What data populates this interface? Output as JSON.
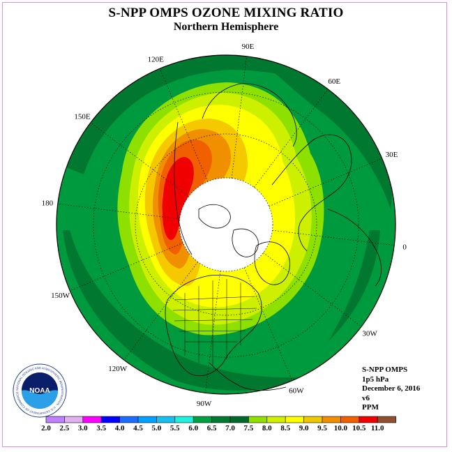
{
  "title": "S-NPP OMPS OZONE MIXING RATIO",
  "subtitle": "Northern Hemisphere",
  "info": {
    "instrument": "S-NPP OMPS",
    "level": "1p5 hPa",
    "date": "December 6, 2016",
    "version": "v6",
    "units": "PPM"
  },
  "logo": {
    "text": "NOAA",
    "ring_text": "NATIONAL OCEANIC AND ATMOSPHERIC ADMINISTRATION · U.S. DEPARTMENT OF COMMERCE"
  },
  "longitude_labels": [
    {
      "lon": 90,
      "text": "90E"
    },
    {
      "lon": 60,
      "text": "60E"
    },
    {
      "lon": 30,
      "text": "30E"
    },
    {
      "lon": 0,
      "text": "0"
    },
    {
      "lon": -30,
      "text": "30W"
    },
    {
      "lon": -60,
      "text": "60W"
    },
    {
      "lon": -90,
      "text": "90W"
    },
    {
      "lon": -120,
      "text": "120W"
    },
    {
      "lon": -150,
      "text": "150W"
    },
    {
      "lon": 180,
      "text": "180"
    },
    {
      "lon": 150,
      "text": "150E"
    },
    {
      "lon": 120,
      "text": "120E"
    }
  ],
  "colorbar": {
    "ticks": [
      "2.0",
      "2.5",
      "3.0",
      "3.5",
      "4.0",
      "4.5",
      "5.0",
      "5.5",
      "6.0",
      "6.5",
      "7.0",
      "7.5",
      "8.0",
      "8.5",
      "9.0",
      "9.5",
      "10.0",
      "10.5",
      "11.0"
    ],
    "colors": [
      "#c080ff",
      "#e0b0f0",
      "#ff00ff",
      "#0000ff",
      "#1c6cff",
      "#00a0ff",
      "#18c0f0",
      "#20f0e0",
      "#00a040",
      "#007a30",
      "#006a2a",
      "#90e000",
      "#d0f000",
      "#ffff00",
      "#f0c800",
      "#f09000",
      "#f06000",
      "#f00000",
      "#905030"
    ]
  },
  "colors": {
    "no_data": "#ffffff",
    "frame": "#d88fd8"
  }
}
